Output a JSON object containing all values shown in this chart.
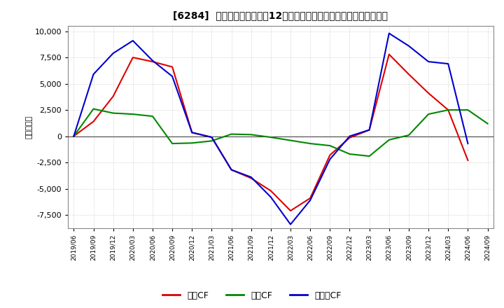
{
  "title": "[6284]  キャッシュフローの12か月移動合計の対前年同期増減額の推移",
  "ylabel": "（百万円）",
  "background_color": "#ffffff",
  "plot_background_color": "#ffffff",
  "grid_color": "#bbbbbb",
  "ylim": [
    -8750,
    10500
  ],
  "yticks": [
    -7500,
    -5000,
    -2500,
    0,
    2500,
    5000,
    7500,
    10000
  ],
  "x_labels": [
    "2019/06",
    "2019/09",
    "2019/12",
    "2020/03",
    "2020/06",
    "2020/09",
    "2020/12",
    "2021/03",
    "2021/06",
    "2021/09",
    "2021/12",
    "2022/03",
    "2022/06",
    "2022/09",
    "2022/12",
    "2023/03",
    "2023/06",
    "2023/09",
    "2023/12",
    "2024/03",
    "2024/06",
    "2024/09"
  ],
  "series": {
    "営業CF": {
      "color": "#dd0000",
      "data": [
        0,
        1400,
        3800,
        7500,
        7100,
        6600,
        350,
        -100,
        -3200,
        -4000,
        -5200,
        -7100,
        -5900,
        -1800,
        -150,
        600,
        7800,
        5900,
        4100,
        2500,
        -2300,
        null
      ]
    },
    "投賃CF": {
      "color": "#008800",
      "data": [
        0,
        2600,
        2200,
        2100,
        1900,
        -700,
        -650,
        -450,
        200,
        150,
        -100,
        -400,
        -700,
        -900,
        -1700,
        -1900,
        -350,
        100,
        2100,
        2500,
        2500,
        1200
      ]
    },
    "フリーCF": {
      "color": "#0000cc",
      "data": [
        0,
        5900,
        7900,
        9100,
        7200,
        5700,
        350,
        -100,
        -3200,
        -3900,
        -5800,
        -8400,
        -6100,
        -2200,
        0,
        600,
        9800,
        8600,
        7100,
        6900,
        -700,
        null
      ]
    }
  },
  "legend_labels": [
    "営業CF",
    "投賃CF",
    "フリーCF"
  ],
  "legend_colors": [
    "#dd0000",
    "#008800",
    "#0000cc"
  ]
}
